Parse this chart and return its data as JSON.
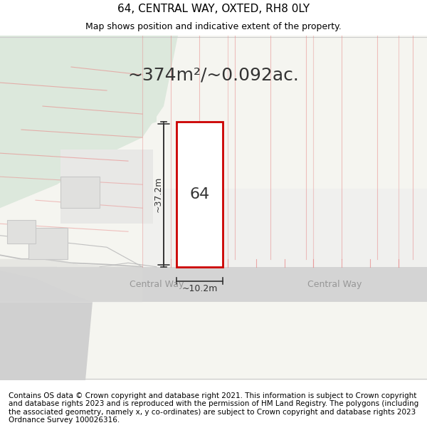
{
  "title": "64, CENTRAL WAY, OXTED, RH8 0LY",
  "subtitle": "Map shows position and indicative extent of the property.",
  "footer": "Contains OS data © Crown copyright and database right 2021. This information is subject to Crown copyright and database rights 2023 and is reproduced with the permission of HM Land Registry. The polygons (including the associated geometry, namely x, y co-ordinates) are subject to Crown copyright and database rights 2023 Ordnance Survey 100026316.",
  "area_label": "~374m²/~0.092ac.",
  "width_label": "~10.2m",
  "height_label": "~37.2m",
  "plot_number": "64",
  "road_label_left": "Central Way",
  "road_label_right": "Central Way",
  "bg_map_color": "#e8f0e8",
  "bg_light_color": "#dce8dc",
  "road_color": "#d8d8d8",
  "plot_border_color": "#cc0000",
  "plot_fill_color": "#ffffff",
  "neighbor_fill_color": "#e8e8e8",
  "neighbor_border_color": "#d0d0d0",
  "land_lines_color": "#e88888",
  "dim_line_color": "#333333",
  "title_fontsize": 11,
  "subtitle_fontsize": 9,
  "footer_fontsize": 7.5,
  "area_fontsize": 18,
  "dim_fontsize": 9,
  "plot_num_fontsize": 16,
  "road_fontsize": 9
}
